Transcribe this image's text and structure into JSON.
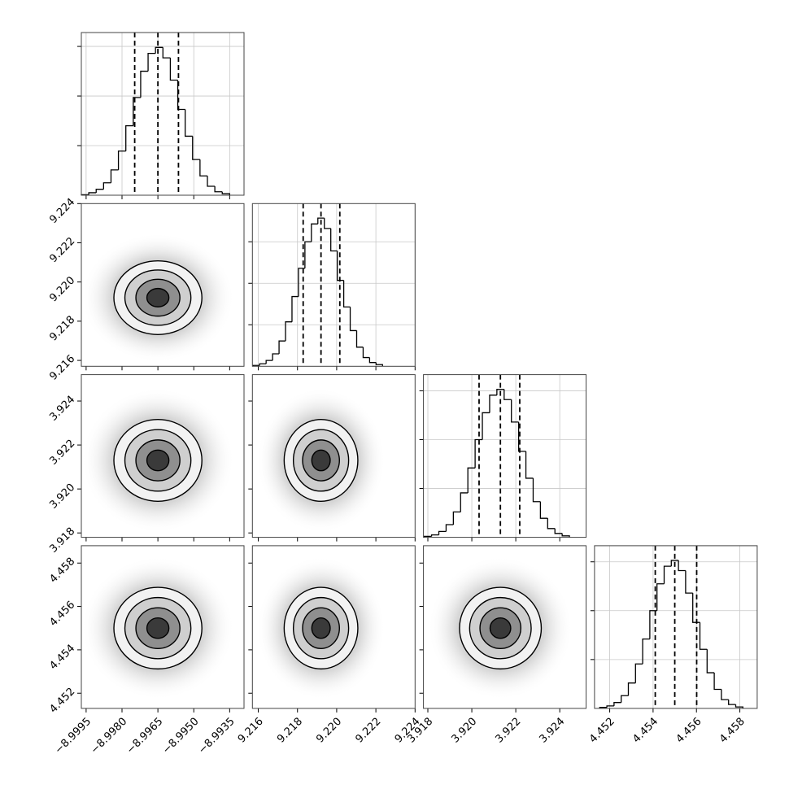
{
  "chart_data": {
    "type": "corner",
    "grid": true,
    "color": "#000000",
    "parameters": [
      {
        "lim": [
          -8.9997,
          -8.9929
        ],
        "ticks": [
          {
            "value": -8.9995,
            "label": "−8.9995"
          },
          {
            "value": -8.998,
            "label": "−8.9980"
          },
          {
            "value": -8.9965,
            "label": "−8.9965"
          },
          {
            "value": -8.995,
            "label": "−8.9950"
          },
          {
            "value": -8.9935,
            "label": "−8.9935"
          }
        ],
        "quantiles": [
          -8.99747,
          -8.9965,
          -8.99564
        ],
        "bins": [
          -8.9997,
          -8.99939,
          -8.99908,
          -8.99877,
          -8.99846,
          -8.99815,
          -8.99784,
          -8.99753,
          -8.99722,
          -8.99691,
          -8.9966,
          -8.99629,
          -8.99598,
          -8.99567,
          -8.99536,
          -8.99505,
          -8.99474,
          -8.99443,
          -8.99412,
          -8.99381,
          -8.9935
        ],
        "values": [
          0.01,
          0.05,
          0.12,
          0.25,
          0.51,
          0.89,
          1.4,
          1.97,
          2.5,
          2.86,
          2.98,
          2.77,
          2.32,
          1.73,
          1.19,
          0.72,
          0.39,
          0.18,
          0.07,
          0.03
        ],
        "hist_ylim": [
          0,
          3.28
        ],
        "hist_yticks": [
          1,
          2,
          3
        ]
      },
      {
        "lim": [
          9.2157,
          9.224
        ],
        "ticks": [
          9.216,
          9.218,
          {
            "value": 9.22,
            "label": "9.220"
          },
          9.222,
          9.224
        ],
        "quantiles": [
          9.21829,
          9.2192,
          9.22016
        ],
        "bins": [
          9.21574,
          9.21607,
          9.2164,
          9.21673,
          9.21706,
          9.21739,
          9.21772,
          9.21805,
          9.21838,
          9.21871,
          9.21904,
          9.21937,
          9.2197,
          9.22003,
          9.22036,
          9.22069,
          9.22102,
          9.22135,
          9.22168,
          9.22201,
          9.22234
        ],
        "values": [
          0.02,
          0.06,
          0.14,
          0.3,
          0.61,
          1.07,
          1.68,
          2.36,
          3.0,
          3.43,
          3.57,
          3.32,
          2.78,
          2.07,
          1.43,
          0.86,
          0.46,
          0.21,
          0.09,
          0.04
        ],
        "hist_ylim": [
          0,
          3.92
        ],
        "hist_yticks": [
          1,
          2,
          3
        ]
      },
      {
        "lim": [
          3.9178,
          3.9252
        ],
        "ticks": [
          3.918,
          {
            "value": 3.92,
            "label": "3.920"
          },
          3.922,
          3.924
        ],
        "quantiles": [
          3.92033,
          3.9213,
          3.92218
        ],
        "bins": [
          3.91784,
          3.91817,
          3.9185,
          3.91883,
          3.91916,
          3.91949,
          3.91982,
          3.92015,
          3.92048,
          3.92081,
          3.92114,
          3.92147,
          3.9218,
          3.92213,
          3.92246,
          3.92279,
          3.92312,
          3.92345,
          3.92378,
          3.92411,
          3.92444
        ],
        "values": [
          0.02,
          0.05,
          0.12,
          0.26,
          0.52,
          0.91,
          1.42,
          2.0,
          2.55,
          2.91,
          3.03,
          2.82,
          2.36,
          1.76,
          1.21,
          0.73,
          0.39,
          0.18,
          0.08,
          0.03
        ],
        "hist_ylim": [
          0,
          3.33
        ],
        "hist_yticks": [
          1,
          2,
          3
        ]
      },
      {
        "lim": [
          4.4513,
          4.4588
        ],
        "ticks": [
          4.452,
          4.454,
          4.456,
          4.458
        ],
        "quantiles": [
          4.4541,
          4.455,
          4.45601
        ],
        "bins": [
          4.45154,
          4.45187,
          4.4522,
          4.45253,
          4.45286,
          4.45319,
          4.45352,
          4.45385,
          4.45418,
          4.45451,
          4.45484,
          4.45517,
          4.4555,
          4.45583,
          4.45616,
          4.45649,
          4.45682,
          4.45715,
          4.45748,
          4.45781,
          4.45814
        ],
        "values": [
          0.02,
          0.05,
          0.12,
          0.26,
          0.52,
          0.91,
          1.42,
          2.0,
          2.55,
          2.91,
          3.03,
          2.82,
          2.36,
          1.76,
          1.21,
          0.73,
          0.39,
          0.18,
          0.08,
          0.03
        ],
        "hist_ylim": [
          0,
          3.33
        ],
        "hist_yticks": [
          1,
          2,
          3
        ]
      }
    ],
    "panels": [
      {
        "x_param": 0,
        "y_param": 1,
        "x": -8.9965,
        "y": 9.2192,
        "cloud": [
          0.0032,
          0.0033
        ],
        "contours": [
          {
            "rx": 0.00184,
            "ry": 0.00188
          },
          {
            "rx": 0.00138,
            "ry": 0.00141
          },
          {
            "rx": 0.00092,
            "ry": 0.00094
          },
          {
            "rx": 0.00046,
            "ry": 0.00047
          }
        ]
      },
      {
        "x_param": 0,
        "y_param": 2,
        "x": -8.9965,
        "y": 3.9213,
        "cloud": [
          0.0032,
          0.0033
        ],
        "contours": [
          {
            "rx": 0.00184,
            "ry": 0.00186
          },
          {
            "rx": 0.00138,
            "ry": 0.0014
          },
          {
            "rx": 0.00092,
            "ry": 0.00093
          },
          {
            "rx": 0.00046,
            "ry": 0.00047
          }
        ]
      },
      {
        "x_param": 1,
        "y_param": 2,
        "x": 9.2192,
        "y": 3.9213,
        "cloud": [
          0.0033,
          0.0033
        ],
        "contours": [
          {
            "rx": 0.00188,
            "ry": 0.00186
          },
          {
            "rx": 0.00141,
            "ry": 0.0014
          },
          {
            "rx": 0.00094,
            "ry": 0.00093
          },
          {
            "rx": 0.00047,
            "ry": 0.00047
          }
        ]
      },
      {
        "x_param": 0,
        "y_param": 3,
        "x": -8.9965,
        "y": 4.455,
        "cloud": [
          0.0032,
          0.0033
        ],
        "contours": [
          {
            "rx": 0.00184,
            "ry": 0.00188
          },
          {
            "rx": 0.00138,
            "ry": 0.00141
          },
          {
            "rx": 0.00092,
            "ry": 0.00094
          },
          {
            "rx": 0.00046,
            "ry": 0.00047
          }
        ]
      },
      {
        "x_param": 1,
        "y_param": 3,
        "x": 9.2192,
        "y": 4.455,
        "cloud": [
          0.0033,
          0.0033
        ],
        "contours": [
          {
            "rx": 0.00188,
            "ry": 0.00188
          },
          {
            "rx": 0.00141,
            "ry": 0.00141
          },
          {
            "rx": 0.00094,
            "ry": 0.00094
          },
          {
            "rx": 0.00047,
            "ry": 0.00047
          }
        ]
      },
      {
        "x_param": 2,
        "y_param": 3,
        "x": 3.9213,
        "y": 4.455,
        "cloud": [
          0.0033,
          0.0033
        ],
        "contours": [
          {
            "rx": 0.00186,
            "ry": 0.00188
          },
          {
            "rx": 0.0014,
            "ry": 0.00141
          },
          {
            "rx": 0.00093,
            "ry": 0.00094
          },
          {
            "rx": 0.00047,
            "ry": 0.00047
          }
        ]
      }
    ]
  }
}
